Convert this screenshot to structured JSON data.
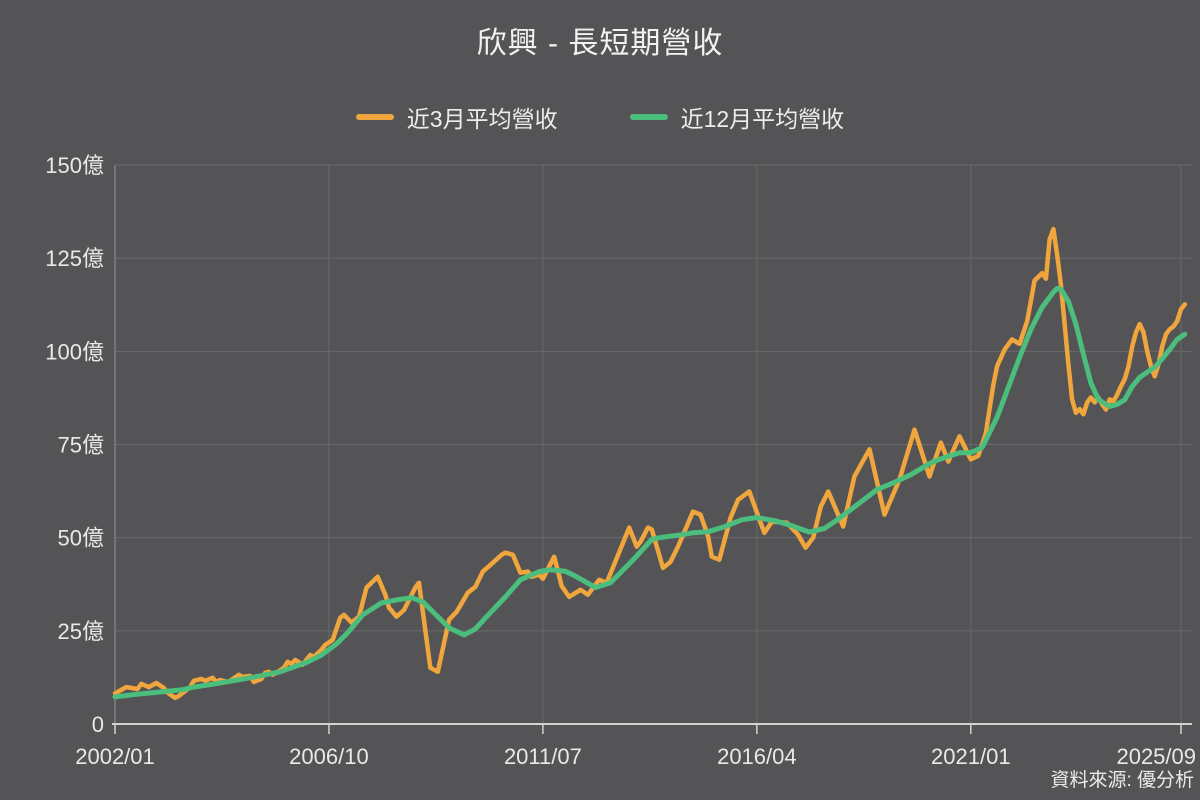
{
  "title": "欣興 - 長短期營收",
  "source": "資料來源: 優分析",
  "colors": {
    "background": "#545456",
    "title_text": "#f2f2f2",
    "label_text": "#e9e9e9",
    "grid": "#6a6a6c",
    "y_axis_line": "#7e7e80",
    "x_axis_line": "#d2d2d2",
    "series_3m": "#f0a63c",
    "series_12m": "#4bbd7c"
  },
  "chart_data": {
    "type": "line",
    "title": "欣興 - 長短期營收",
    "y_unit": "億",
    "ylim": [
      0,
      150
    ],
    "grid": true,
    "legend_position": "top",
    "x_tick_labels": [
      "2002/01",
      "2006/10",
      "2011/07",
      "2016/04",
      "2021/01",
      "2025/09"
    ],
    "y_tick_labels": [
      "0",
      "25億",
      "50億",
      "75億",
      "100億",
      "125億",
      "150億"
    ],
    "y_tick_values": [
      0,
      25,
      50,
      75,
      100,
      125,
      150
    ],
    "series": [
      {
        "name": "近3月平均營收",
        "color": "#f0a63c",
        "points": [
          [
            "2002/01",
            8.2
          ],
          [
            "2002/04",
            9.9
          ],
          [
            "2002/07",
            9.4
          ],
          [
            "2002/08",
            10.8
          ],
          [
            "2002/10",
            9.9
          ],
          [
            "2002/12",
            11.0
          ],
          [
            "2003/02",
            9.7
          ],
          [
            "2003/03",
            8.4
          ],
          [
            "2003/05",
            7.0
          ],
          [
            "2003/06",
            7.5
          ],
          [
            "2003/08",
            9.1
          ],
          [
            "2003/09",
            9.9
          ],
          [
            "2003/10",
            11.6
          ],
          [
            "2003/12",
            12.1
          ],
          [
            "2004/01",
            11.6
          ],
          [
            "2004/03",
            12.4
          ],
          [
            "2004/04",
            11.3
          ],
          [
            "2004/05",
            11.8
          ],
          [
            "2004/07",
            11.3
          ],
          [
            "2004/08",
            11.8
          ],
          [
            "2004/10",
            13.2
          ],
          [
            "2004/11",
            12.6
          ],
          [
            "2005/01",
            12.9
          ],
          [
            "2005/02",
            11.3
          ],
          [
            "2005/04",
            12.1
          ],
          [
            "2005/05",
            13.7
          ],
          [
            "2005/06",
            14.0
          ],
          [
            "2005/07",
            13.2
          ],
          [
            "2005/08",
            13.7
          ],
          [
            "2005/10",
            15.1
          ],
          [
            "2005/11",
            16.7
          ],
          [
            "2005/12",
            16.1
          ],
          [
            "2006/01",
            17.2
          ],
          [
            "2006/03",
            15.9
          ],
          [
            "2006/04",
            17.2
          ],
          [
            "2006/05",
            18.5
          ],
          [
            "2006/06",
            18.0
          ],
          [
            "2006/08",
            19.9
          ],
          [
            "2006/09",
            21.2
          ],
          [
            "2006/11",
            22.6
          ],
          [
            "2007/01",
            28.5
          ],
          [
            "2007/02",
            29.3
          ],
          [
            "2007/04",
            27.2
          ],
          [
            "2007/06",
            28.8
          ],
          [
            "2007/08",
            36.6
          ],
          [
            "2007/11",
            39.5
          ],
          [
            "2008/01",
            34.7
          ],
          [
            "2008/02",
            31.2
          ],
          [
            "2008/04",
            28.8
          ],
          [
            "2008/06",
            30.6
          ],
          [
            "2008/09",
            36.6
          ],
          [
            "2008/10",
            37.9
          ],
          [
            "2009/01",
            15.1
          ],
          [
            "2009/03",
            14.0
          ],
          [
            "2009/06",
            28.0
          ],
          [
            "2009/08",
            30.1
          ],
          [
            "2009/11",
            35.2
          ],
          [
            "2009/12",
            36.0
          ],
          [
            "2010/01",
            36.8
          ],
          [
            "2010/03",
            40.9
          ],
          [
            "2010/05",
            42.7
          ],
          [
            "2010/08",
            45.4
          ],
          [
            "2010/09",
            46.0
          ],
          [
            "2010/11",
            45.4
          ],
          [
            "2011/01",
            40.6
          ],
          [
            "2011/03",
            40.9
          ],
          [
            "2011/04",
            39.5
          ],
          [
            "2011/06",
            40.1
          ],
          [
            "2011/07",
            39.0
          ],
          [
            "2011/10",
            44.9
          ],
          [
            "2011/12",
            37.0
          ],
          [
            "2012/02",
            34.1
          ],
          [
            "2012/05",
            36.0
          ],
          [
            "2012/07",
            34.7
          ],
          [
            "2012/10",
            38.7
          ],
          [
            "2012/12",
            37.9
          ],
          [
            "2013/06",
            52.7
          ],
          [
            "2013/08",
            47.6
          ],
          [
            "2013/09",
            48.9
          ],
          [
            "2013/11",
            52.7
          ],
          [
            "2013/12",
            52.2
          ],
          [
            "2014/03",
            41.9
          ],
          [
            "2014/05",
            43.5
          ],
          [
            "2014/07",
            47.6
          ],
          [
            "2014/11",
            57.0
          ],
          [
            "2015/01",
            56.2
          ],
          [
            "2015/03",
            50.3
          ],
          [
            "2015/04",
            44.9
          ],
          [
            "2015/06",
            44.1
          ],
          [
            "2015/09",
            55.4
          ],
          [
            "2015/11",
            60.2
          ],
          [
            "2016/02",
            62.4
          ],
          [
            "2016/05",
            54.0
          ],
          [
            "2016/06",
            51.3
          ],
          [
            "2016/08",
            54.3
          ],
          [
            "2016/12",
            54.0
          ],
          [
            "2017/03",
            50.8
          ],
          [
            "2017/05",
            47.3
          ],
          [
            "2017/07",
            50.0
          ],
          [
            "2017/09",
            58.3
          ],
          [
            "2017/11",
            62.4
          ],
          [
            "2018/03",
            53.0
          ],
          [
            "2018/06",
            66.4
          ],
          [
            "2018/10",
            73.7
          ],
          [
            "2019/02",
            56.2
          ],
          [
            "2019/06",
            65.6
          ],
          [
            "2019/10",
            79.0
          ],
          [
            "2020/02",
            66.4
          ],
          [
            "2020/05",
            75.5
          ],
          [
            "2020/07",
            70.4
          ],
          [
            "2020/10",
            77.2
          ],
          [
            "2021/01",
            71.0
          ],
          [
            "2021/03",
            72.0
          ],
          [
            "2021/05",
            78.0
          ],
          [
            "2021/07",
            91.0
          ],
          [
            "2021/08",
            96.0
          ],
          [
            "2021/10",
            100.5
          ],
          [
            "2021/12",
            103.2
          ],
          [
            "2022/02",
            102.0
          ],
          [
            "2022/04",
            108.0
          ],
          [
            "2022/06",
            119.0
          ],
          [
            "2022/08",
            121.0
          ],
          [
            "2022/09",
            119.5
          ],
          [
            "2022/10",
            130.0
          ],
          [
            "2022/11",
            132.8
          ],
          [
            "2022/12",
            126.0
          ],
          [
            "2023/01",
            118.0
          ],
          [
            "2023/03",
            96.5
          ],
          [
            "2023/04",
            87.1
          ],
          [
            "2023/05",
            83.5
          ],
          [
            "2023/06",
            84.5
          ],
          [
            "2023/07",
            83.1
          ],
          [
            "2023/08",
            86.3
          ],
          [
            "2023/09",
            87.6
          ],
          [
            "2023/10",
            86.3
          ],
          [
            "2023/11",
            87.6
          ],
          [
            "2023/12",
            85.8
          ],
          [
            "2024/01",
            84.4
          ],
          [
            "2024/02",
            87.1
          ],
          [
            "2024/03",
            86.6
          ],
          [
            "2024/04",
            88.4
          ],
          [
            "2024/05",
            90.6
          ],
          [
            "2024/06",
            92.5
          ],
          [
            "2024/07",
            96.0
          ],
          [
            "2024/08",
            101.3
          ],
          [
            "2024/09",
            105.1
          ],
          [
            "2024/10",
            107.3
          ],
          [
            "2024/11",
            105.1
          ],
          [
            "2024/12",
            100.0
          ],
          [
            "2025/01",
            96.0
          ],
          [
            "2025/02",
            93.3
          ],
          [
            "2025/03",
            96.5
          ],
          [
            "2025/04",
            101.3
          ],
          [
            "2025/05",
            104.6
          ],
          [
            "2025/06",
            105.9
          ],
          [
            "2025/07",
            106.7
          ],
          [
            "2025/08",
            108.1
          ],
          [
            "2025/09",
            111.3
          ],
          [
            "2025/10",
            112.6
          ]
        ]
      },
      {
        "name": "近12月平均營收",
        "color": "#4bbd7c",
        "points": [
          [
            "2002/01",
            7.3
          ],
          [
            "2002/07",
            8.0
          ],
          [
            "2003/01",
            8.6
          ],
          [
            "2003/07",
            9.2
          ],
          [
            "2003/10",
            9.9
          ],
          [
            "2004/05",
            11.0
          ],
          [
            "2005/01",
            12.4
          ],
          [
            "2005/09",
            14.0
          ],
          [
            "2006/04",
            16.5
          ],
          [
            "2006/08",
            18.5
          ],
          [
            "2006/12",
            21.5
          ],
          [
            "2007/03",
            24.5
          ],
          [
            "2007/07",
            29.3
          ],
          [
            "2007/12",
            32.5
          ],
          [
            "2008/04",
            33.3
          ],
          [
            "2008/08",
            33.9
          ],
          [
            "2008/11",
            32.8
          ],
          [
            "2009/02",
            29.8
          ],
          [
            "2009/06",
            25.8
          ],
          [
            "2009/10",
            23.9
          ],
          [
            "2010/01",
            25.5
          ],
          [
            "2010/04",
            28.8
          ],
          [
            "2010/09",
            34.1
          ],
          [
            "2011/01",
            38.7
          ],
          [
            "2011/06",
            40.9
          ],
          [
            "2011/09",
            41.4
          ],
          [
            "2012/01",
            41.0
          ],
          [
            "2012/04",
            39.5
          ],
          [
            "2012/09",
            36.6
          ],
          [
            "2013/01",
            37.9
          ],
          [
            "2013/07",
            44.0
          ],
          [
            "2013/12",
            49.5
          ],
          [
            "2014/02",
            50.0
          ],
          [
            "2014/08",
            50.8
          ],
          [
            "2014/11",
            51.3
          ],
          [
            "2015/03",
            51.6
          ],
          [
            "2015/07",
            52.8
          ],
          [
            "2015/12",
            54.8
          ],
          [
            "2016/04",
            55.4
          ],
          [
            "2016/09",
            54.5
          ],
          [
            "2017/01",
            53.3
          ],
          [
            "2017/06",
            51.5
          ],
          [
            "2017/10",
            52.5
          ],
          [
            "2018/01",
            54.5
          ],
          [
            "2018/05",
            57.5
          ],
          [
            "2018/12",
            62.9
          ],
          [
            "2019/05",
            65.0
          ],
          [
            "2019/09",
            66.9
          ],
          [
            "2020/03",
            70.4
          ],
          [
            "2020/07",
            71.8
          ],
          [
            "2020/10",
            72.8
          ],
          [
            "2021/01",
            72.8
          ],
          [
            "2021/04",
            74.2
          ],
          [
            "2021/08",
            82.3
          ],
          [
            "2021/11",
            90.3
          ],
          [
            "2022/02",
            98.4
          ],
          [
            "2022/05",
            105.9
          ],
          [
            "2022/08",
            111.8
          ],
          [
            "2022/11",
            115.9
          ],
          [
            "2022/12",
            116.9
          ],
          [
            "2023/01",
            116.7
          ],
          [
            "2023/03",
            113.4
          ],
          [
            "2023/05",
            107.3
          ],
          [
            "2023/07",
            99.2
          ],
          [
            "2023/09",
            91.5
          ],
          [
            "2023/11",
            87.1
          ],
          [
            "2024/01",
            85.8
          ],
          [
            "2024/02",
            85.2
          ],
          [
            "2024/04",
            85.8
          ],
          [
            "2024/06",
            87.0
          ],
          [
            "2024/08",
            90.6
          ],
          [
            "2024/10",
            93.0
          ],
          [
            "2024/12",
            94.4
          ],
          [
            "2025/02",
            95.7
          ],
          [
            "2025/04",
            98.0
          ],
          [
            "2025/06",
            100.5
          ],
          [
            "2025/08",
            103.2
          ],
          [
            "2025/10",
            104.6
          ]
        ]
      }
    ]
  }
}
